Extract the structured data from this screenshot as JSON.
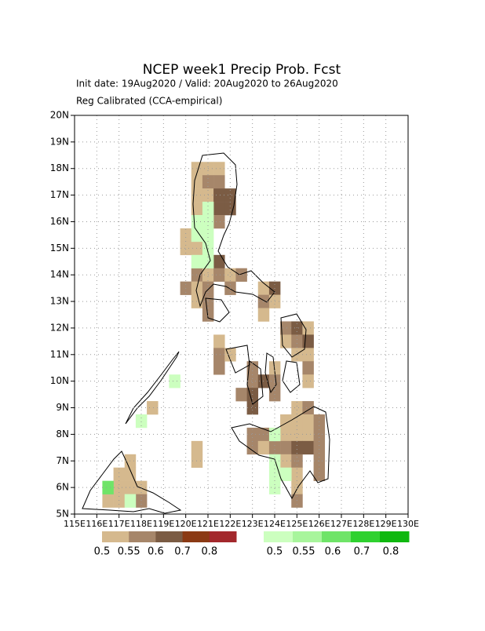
{
  "map": {
    "type": "grid-map",
    "title": "NCEP week1 Precip Prob. Fcst",
    "subtitle": "Init date: 19Aug2020 / Valid: 20Aug2020 to 26Aug2020",
    "note": "Reg Calibrated (CCA-empirical)",
    "xlim": [
      115,
      130
    ],
    "ylim": [
      5,
      20
    ],
    "xticks": [
      {
        "value": 115,
        "label": "115E"
      },
      {
        "value": 116,
        "label": "116E"
      },
      {
        "value": 117,
        "label": "117E"
      },
      {
        "value": 118,
        "label": "118E"
      },
      {
        "value": 119,
        "label": "119E"
      },
      {
        "value": 120,
        "label": "120E"
      },
      {
        "value": 121,
        "label": "121E"
      },
      {
        "value": 122,
        "label": "122E"
      },
      {
        "value": 123,
        "label": "123E"
      },
      {
        "value": 124,
        "label": "124E"
      },
      {
        "value": 125,
        "label": "125E"
      },
      {
        "value": 126,
        "label": "126E"
      },
      {
        "value": 127,
        "label": "127E"
      },
      {
        "value": 128,
        "label": "128E"
      },
      {
        "value": 129,
        "label": "129E"
      },
      {
        "value": 130,
        "label": "130E"
      }
    ],
    "yticks": [
      {
        "value": 5,
        "label": "5N"
      },
      {
        "value": 6,
        "label": "6N"
      },
      {
        "value": 7,
        "label": "7N"
      },
      {
        "value": 8,
        "label": "8N"
      },
      {
        "value": 9,
        "label": "9N"
      },
      {
        "value": 10,
        "label": "10N"
      },
      {
        "value": 11,
        "label": "11N"
      },
      {
        "value": 12,
        "label": "12N"
      },
      {
        "value": 13,
        "label": "13N"
      },
      {
        "value": 14,
        "label": "14N"
      },
      {
        "value": 15,
        "label": "15N"
      },
      {
        "value": 16,
        "label": "16N"
      },
      {
        "value": 17,
        "label": "17N"
      },
      {
        "value": 18,
        "label": "18N"
      },
      {
        "value": 19,
        "label": "19N"
      },
      {
        "value": 20,
        "label": "20N"
      }
    ],
    "grid": true,
    "cell_size": 0.5,
    "dry_scale": {
      "levels": [
        0.5,
        0.55,
        0.6,
        0.7,
        0.8
      ],
      "colors": [
        "#d5b98e",
        "#a6866a",
        "#7b5c44",
        "#8b3a14",
        "#a3282c"
      ]
    },
    "wet_scale": {
      "levels": [
        0.5,
        0.55,
        0.6,
        0.7,
        0.8
      ],
      "colors": [
        "#ccffbf",
        "#a8f59c",
        "#6fe468",
        "#2fd12f",
        "#0fb80f"
      ]
    },
    "dry_cells": [
      [
        120.5,
        18,
        0.52
      ],
      [
        121,
        18,
        0.52
      ],
      [
        121.5,
        18,
        0.52
      ],
      [
        120.5,
        17.5,
        0.52
      ],
      [
        121,
        17.5,
        0.57
      ],
      [
        121.5,
        17.5,
        0.57
      ],
      [
        120.5,
        17,
        0.52
      ],
      [
        121,
        17,
        0.52
      ],
      [
        121.5,
        17,
        0.65
      ],
      [
        122,
        17,
        0.65
      ],
      [
        120.5,
        16.5,
        0.52
      ],
      [
        121.5,
        16.5,
        0.65
      ],
      [
        122,
        16.5,
        0.65
      ],
      [
        121.5,
        16,
        0.57
      ],
      [
        120,
        15.5,
        0.52
      ],
      [
        120,
        15,
        0.52
      ],
      [
        120.5,
        15,
        0.52
      ],
      [
        121.5,
        14.5,
        0.65
      ],
      [
        120.5,
        14,
        0.57
      ],
      [
        121,
        14,
        0.52
      ],
      [
        121.5,
        14,
        0.57
      ],
      [
        122,
        14,
        0.52
      ],
      [
        122.5,
        14,
        0.57
      ],
      [
        120,
        13.5,
        0.57
      ],
      [
        120.5,
        13.5,
        0.52
      ],
      [
        121,
        13.5,
        0.57
      ],
      [
        122,
        13.5,
        0.57
      ],
      [
        123.5,
        13.5,
        0.52
      ],
      [
        124,
        13.5,
        0.65
      ],
      [
        120.5,
        13,
        0.52
      ],
      [
        121,
        13,
        0.57
      ],
      [
        123.5,
        13,
        0.57
      ],
      [
        124,
        13,
        0.52
      ],
      [
        121,
        12.5,
        0.57
      ],
      [
        123.5,
        12.5,
        0.52
      ],
      [
        124.5,
        12,
        0.57
      ],
      [
        125,
        12,
        0.65
      ],
      [
        125.5,
        12,
        0.52
      ],
      [
        121.5,
        11.5,
        0.52
      ],
      [
        124.5,
        11.5,
        0.52
      ],
      [
        125,
        11.5,
        0.57
      ],
      [
        125.5,
        11.5,
        0.65
      ],
      [
        121.5,
        11,
        0.57
      ],
      [
        122,
        11,
        0.52
      ],
      [
        125,
        11,
        0.52
      ],
      [
        125.5,
        11,
        0.52
      ],
      [
        121.5,
        10.5,
        0.57
      ],
      [
        123,
        10.5,
        0.57
      ],
      [
        124,
        10.5,
        0.52
      ],
      [
        125.5,
        10.5,
        0.57
      ],
      [
        123,
        10,
        0.57
      ],
      [
        123.5,
        10,
        0.65
      ],
      [
        124,
        10,
        0.57
      ],
      [
        125.5,
        10,
        0.52
      ],
      [
        122.5,
        9.5,
        0.57
      ],
      [
        123,
        9.5,
        0.65
      ],
      [
        124,
        9.5,
        0.57
      ],
      [
        123,
        9,
        0.65
      ],
      [
        125,
        9,
        0.52
      ],
      [
        125.5,
        9,
        0.57
      ],
      [
        124.5,
        8.5,
        0.52
      ],
      [
        125,
        8.5,
        0.52
      ],
      [
        125.5,
        8.5,
        0.52
      ],
      [
        126,
        8.5,
        0.57
      ],
      [
        123,
        8,
        0.57
      ],
      [
        123.5,
        8,
        0.57
      ],
      [
        124.5,
        8,
        0.52
      ],
      [
        125,
        8,
        0.52
      ],
      [
        125.5,
        8,
        0.52
      ],
      [
        126,
        8,
        0.57
      ],
      [
        120.5,
        7.5,
        0.52
      ],
      [
        123,
        7.5,
        0.57
      ],
      [
        123.5,
        7.5,
        0.52
      ],
      [
        124,
        7.5,
        0.57
      ],
      [
        124.5,
        7.5,
        0.57
      ],
      [
        125,
        7.5,
        0.65
      ],
      [
        125.5,
        7.5,
        0.65
      ],
      [
        126,
        7.5,
        0.57
      ],
      [
        120.5,
        7,
        0.52
      ],
      [
        124.5,
        7,
        0.52
      ],
      [
        125,
        7,
        0.57
      ],
      [
        126,
        7,
        0.57
      ],
      [
        125,
        6.5,
        0.52
      ],
      [
        126,
        6.5,
        0.57
      ],
      [
        125,
        6,
        0.52
      ],
      [
        125,
        5.5,
        0.57
      ],
      [
        117.5,
        7,
        0.52
      ],
      [
        117,
        6.5,
        0.52
      ],
      [
        117.5,
        6.5,
        0.52
      ],
      [
        117,
        6,
        0.52
      ],
      [
        117.5,
        6,
        0.52
      ],
      [
        118,
        6,
        0.52
      ],
      [
        116.5,
        5.5,
        0.52
      ],
      [
        117,
        5.5,
        0.52
      ],
      [
        118,
        5.5,
        0.57
      ],
      [
        118.5,
        9,
        0.52
      ]
    ],
    "wet_cells": [
      [
        121,
        16.5,
        0.52
      ],
      [
        120.5,
        16,
        0.52
      ],
      [
        121,
        16,
        0.52
      ],
      [
        120.5,
        15.5,
        0.52
      ],
      [
        121,
        15.5,
        0.52
      ],
      [
        121,
        15,
        0.52
      ],
      [
        120.5,
        14.5,
        0.52
      ],
      [
        121,
        14.5,
        0.52
      ],
      [
        124,
        8,
        0.52
      ],
      [
        124,
        7,
        0.52
      ],
      [
        124,
        6.5,
        0.52
      ],
      [
        124.5,
        6.5,
        0.52
      ],
      [
        124,
        6,
        0.52
      ],
      [
        116.5,
        6,
        0.62
      ],
      [
        117.5,
        5.5,
        0.52
      ],
      [
        119.5,
        10,
        0.52
      ],
      [
        118,
        8.5,
        0.52
      ]
    ]
  }
}
